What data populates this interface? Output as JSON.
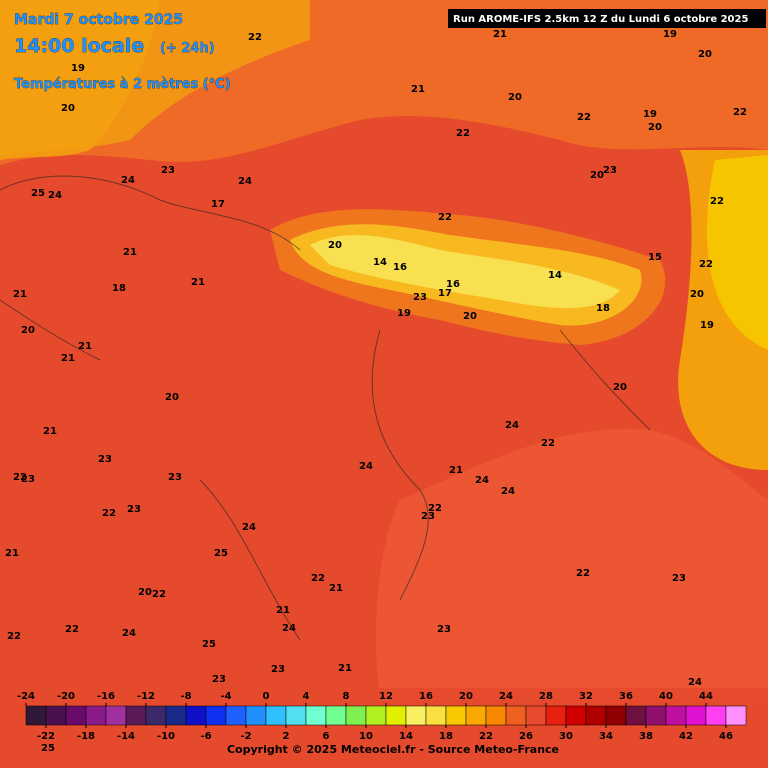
{
  "header": {
    "date": "Mardi 7 octobre 2025",
    "time": "14:00 locale",
    "lead": "(+ 24h)",
    "field": "Températures à 2 mètres (°C)",
    "run": "Run AROME-IFS 2.5km 12 Z du Lundi 6 octobre 2025"
  },
  "map_labels": [
    22,
    21,
    19,
    20,
    19,
    20,
    21,
    20,
    22,
    22,
    19,
    20,
    22,
    23,
    24,
    24,
    25,
    24,
    20,
    23,
    22,
    17,
    22,
    21,
    20,
    14,
    16,
    14,
    16,
    17,
    18,
    15,
    22,
    18,
    21,
    21,
    23,
    19,
    20,
    20,
    19,
    20,
    21,
    21,
    20,
    20,
    21,
    24,
    22,
    23,
    24,
    21,
    22,
    23,
    23,
    24,
    24,
    22,
    23,
    22,
    23,
    24,
    21,
    25,
    22,
    23,
    22,
    21,
    20,
    22,
    21,
    22,
    24,
    24,
    23,
    22,
    25,
    23,
    21,
    23,
    24,
    25,
    25
  ],
  "legend": {
    "ticks": [
      -24,
      -22,
      -20,
      -18,
      -16,
      -14,
      -12,
      -10,
      -8,
      -6,
      -4,
      -2,
      0,
      2,
      4,
      6,
      8,
      10,
      12,
      14,
      16,
      18,
      20,
      22,
      24,
      26,
      28,
      30,
      32,
      34,
      36,
      38,
      40,
      42,
      44,
      46
    ],
    "colors": [
      "#301838",
      "#4a1050",
      "#6a0a6a",
      "#8a1a8a",
      "#a030a0",
      "#5a1a58",
      "#3a2a6a",
      "#1a2a8a",
      "#1010c8",
      "#1030f0",
      "#2060ff",
      "#2090ff",
      "#30c0ff",
      "#50e0f0",
      "#70ffd0",
      "#70ff90",
      "#80f050",
      "#b0f020",
      "#e0f000",
      "#f8f060",
      "#f8e040",
      "#f8c800",
      "#f8a800",
      "#f88800",
      "#f06020",
      "#e84a30",
      "#e82010",
      "#d00000",
      "#b00000",
      "#900000",
      "#701040",
      "#901070",
      "#c010a0",
      "#e010d0",
      "#ff40f0",
      "#ff90ff"
    ]
  },
  "footer": "Copyright © 2025 Meteociel.fr - Source Meteo-France"
}
